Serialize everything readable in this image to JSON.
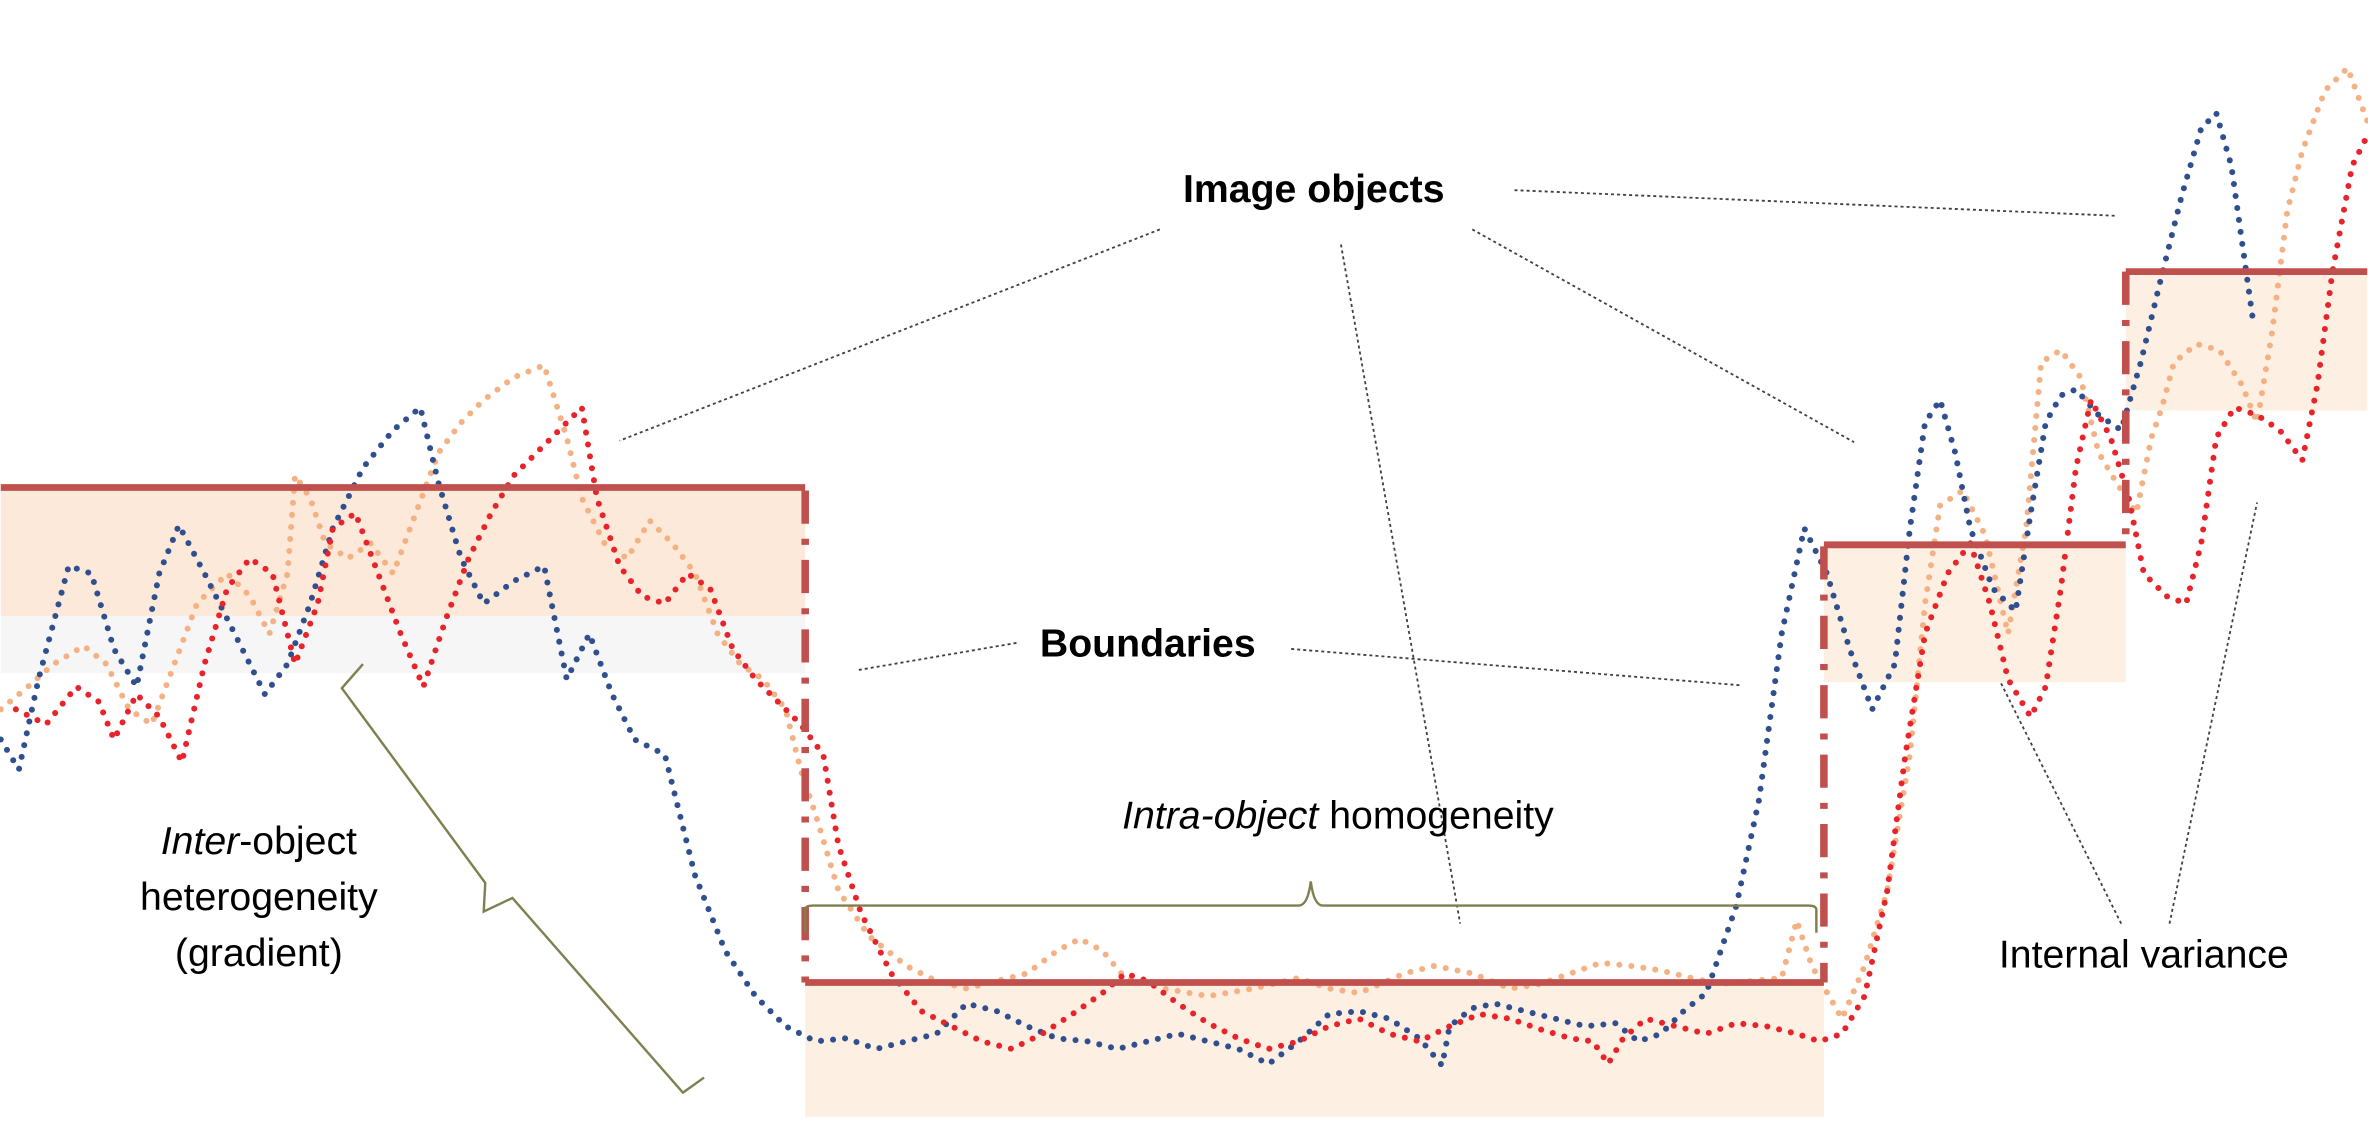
{
  "labels": {
    "image_objects": "Image objects",
    "boundaries": "Boundaries",
    "intra_italic": "Intra-object",
    "intra_rest": " homogeneity",
    "inter_italic": "Inter",
    "inter_rest": "-object",
    "heterogeneity": "heterogeneity",
    "gradient": "(gradient)",
    "internal_variance": "Internal variance"
  },
  "colors": {
    "boundary_line": "#c0504d",
    "object_fill": "#fde9d9",
    "series_blue": "#2f4f8f",
    "series_red": "#e8232a",
    "series_orange": "#f4b183",
    "brace": "#7f7f4f",
    "leader": "#404040"
  }
}
